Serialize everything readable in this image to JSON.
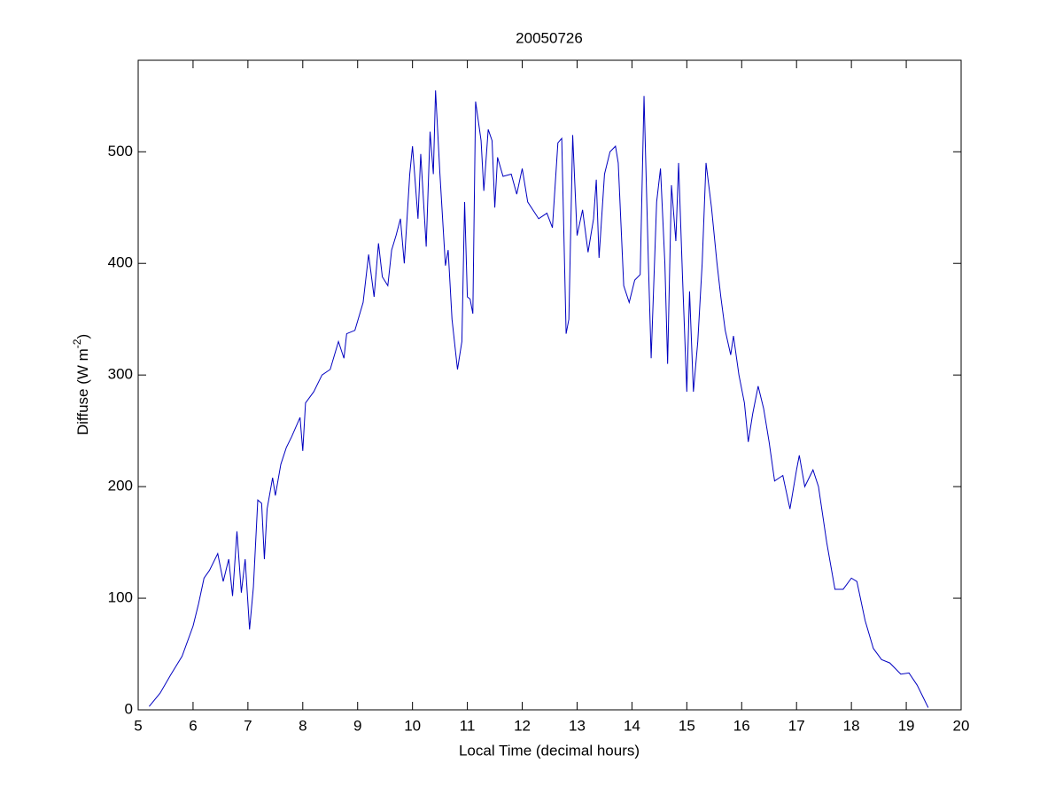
{
  "chart_data": {
    "type": "line",
    "title": "20050726",
    "xlabel": "Local Time (decimal hours)",
    "ylabel": [
      "Diffuse (W m",
      "-2",
      ")"
    ],
    "xlim": [
      5,
      20
    ],
    "xticks": [
      5,
      6,
      7,
      8,
      9,
      10,
      11,
      12,
      13,
      14,
      15,
      16,
      17,
      18,
      19,
      20
    ],
    "ylim": [
      0,
      582
    ],
    "yticks": [
      0,
      100,
      200,
      300,
      400,
      500
    ],
    "grid": false,
    "series": [
      {
        "color": "#0000c0",
        "x": [
          5.2,
          5.4,
          5.6,
          5.8,
          6.0,
          6.1,
          6.2,
          6.3,
          6.45,
          6.55,
          6.65,
          6.72,
          6.8,
          6.88,
          6.95,
          7.03,
          7.1,
          7.18,
          7.25,
          7.3,
          7.35,
          7.45,
          7.5,
          7.6,
          7.7,
          7.8,
          7.95,
          8.0,
          8.05,
          8.2,
          8.35,
          8.5,
          8.65,
          8.75,
          8.8,
          8.95,
          9.1,
          9.2,
          9.3,
          9.38,
          9.45,
          9.55,
          9.62,
          9.7,
          9.78,
          9.85,
          9.95,
          10.0,
          10.1,
          10.15,
          10.25,
          10.32,
          10.38,
          10.42,
          10.5,
          10.6,
          10.65,
          10.72,
          10.82,
          10.9,
          10.95,
          11.0,
          11.05,
          11.1,
          11.15,
          11.25,
          11.3,
          11.38,
          11.45,
          11.5,
          11.55,
          11.65,
          11.8,
          11.9,
          12.0,
          12.1,
          12.3,
          12.45,
          12.55,
          12.65,
          12.72,
          12.8,
          12.85,
          12.92,
          13.0,
          13.1,
          13.2,
          13.3,
          13.35,
          13.4,
          13.5,
          13.6,
          13.7,
          13.75,
          13.85,
          13.95,
          14.05,
          14.15,
          14.22,
          14.3,
          14.35,
          14.45,
          14.52,
          14.6,
          14.65,
          14.72,
          14.8,
          14.85,
          14.92,
          15.0,
          15.05,
          15.12,
          15.2,
          15.28,
          15.35,
          15.45,
          15.55,
          15.62,
          15.7,
          15.8,
          15.85,
          15.95,
          16.05,
          16.12,
          16.2,
          16.3,
          16.4,
          16.5,
          16.6,
          16.75,
          16.88,
          17.0,
          17.05,
          17.15,
          17.3,
          17.4,
          17.55,
          17.7,
          17.85,
          18.0,
          18.1,
          18.25,
          18.4,
          18.55,
          18.7,
          18.9,
          19.05,
          19.2,
          19.4
        ],
        "values": [
          3,
          15,
          32,
          48,
          75,
          95,
          118,
          125,
          140,
          115,
          135,
          102,
          160,
          105,
          135,
          72,
          110,
          188,
          185,
          135,
          180,
          208,
          192,
          220,
          235,
          245,
          262,
          232,
          275,
          285,
          300,
          305,
          330,
          315,
          337,
          340,
          365,
          408,
          370,
          418,
          388,
          380,
          412,
          425,
          440,
          400,
          480,
          505,
          440,
          498,
          415,
          518,
          480,
          555,
          480,
          398,
          412,
          350,
          305,
          330,
          455,
          370,
          368,
          355,
          545,
          510,
          465,
          520,
          510,
          450,
          495,
          478,
          480,
          462,
          485,
          455,
          440,
          445,
          432,
          508,
          512,
          337,
          350,
          515,
          425,
          448,
          410,
          440,
          475,
          405,
          480,
          500,
          505,
          490,
          380,
          365,
          385,
          390,
          550,
          400,
          315,
          455,
          485,
          400,
          310,
          470,
          420,
          490,
          390,
          285,
          375,
          285,
          330,
          400,
          490,
          450,
          400,
          370,
          340,
          318,
          335,
          300,
          275,
          240,
          265,
          290,
          270,
          240,
          205,
          210,
          180,
          215,
          228,
          200,
          215,
          200,
          150,
          108,
          108,
          118,
          115,
          80,
          55,
          45,
          42,
          32,
          33,
          22,
          2
        ]
      }
    ]
  }
}
